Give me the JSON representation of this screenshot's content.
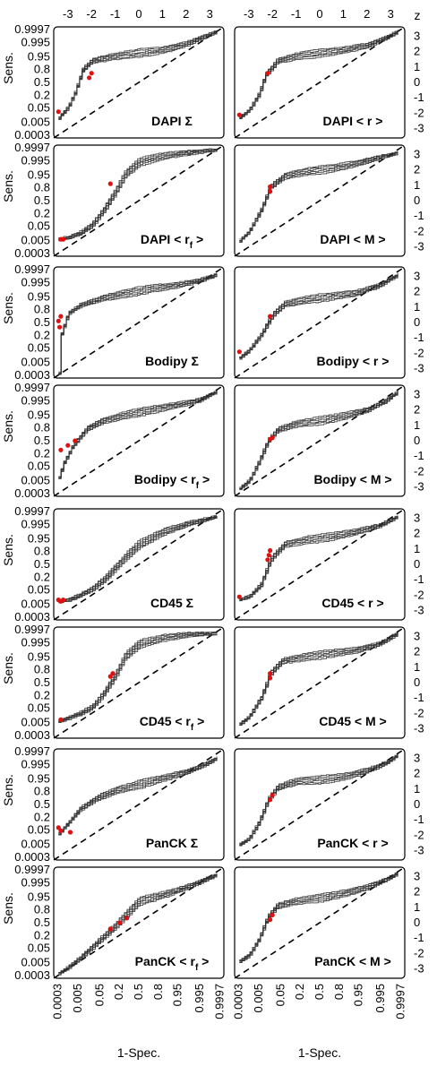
{
  "chart_data": {
    "type": "line",
    "axes": {
      "y_left": {
        "label": "Sens.",
        "ticks": [
          0.9997,
          0.995,
          0.95,
          0.8,
          0.5,
          0.2,
          0.05,
          0.005,
          0.0003
        ],
        "tick_labels": [
          "0.9997",
          "0.995",
          "0.95",
          "0.8",
          "0.5",
          "0.2",
          "0.05",
          "0.005",
          "0.0003"
        ],
        "scale": "probit"
      },
      "x_bottom": {
        "label": "1-Spec.",
        "ticks": [
          0.0003,
          0.005,
          0.05,
          0.2,
          0.5,
          0.8,
          0.95,
          0.995,
          0.9997
        ],
        "tick_labels": [
          "0.0003",
          "0.005",
          "0.05",
          "0.2",
          "0.5",
          "0.8",
          "0.95",
          "0.995",
          "0.9997"
        ],
        "scale": "probit"
      },
      "x_top": {
        "label": "z",
        "ticks": [
          -3,
          -2,
          -1,
          0,
          1,
          2,
          3
        ],
        "tick_labels": [
          "-3",
          "-2",
          "-1",
          "0",
          "1",
          "2",
          "3"
        ]
      },
      "y_right": {
        "label": "",
        "ticks": [
          3,
          2,
          1,
          0,
          -1,
          -2,
          -3
        ],
        "tick_labels": [
          "3",
          "2",
          "1",
          "0",
          "-1",
          "-2",
          "-3"
        ]
      },
      "z_range": [
        -3.6,
        3.6
      ]
    },
    "grid": false,
    "chance_line": "dashed diagonal",
    "panels": [
      {
        "title": "DAPI Σ",
        "sub": "",
        "end": "",
        "row": 0,
        "col": 0,
        "curve": [
          [
            -3.4,
            -2.3
          ],
          [
            -3.0,
            -1.6
          ],
          [
            -2.7,
            -0.6
          ],
          [
            -2.4,
            0.8
          ],
          [
            -2.0,
            1.4
          ],
          [
            -1.0,
            1.7
          ],
          [
            0.0,
            1.9
          ],
          [
            1.0,
            2.1
          ],
          [
            2.0,
            2.5
          ],
          [
            2.8,
            3.0
          ],
          [
            3.3,
            3.3
          ]
        ],
        "markers": [
          [
            -3.4,
            -1.9
          ],
          [
            -2.1,
            0.3
          ],
          [
            -2.0,
            0.6
          ]
        ]
      },
      {
        "title": "DAPI < r >",
        "sub": "",
        "end": "",
        "row": 0,
        "col": 1,
        "curve": [
          [
            -3.4,
            -2.3
          ],
          [
            -3.0,
            -1.8
          ],
          [
            -2.6,
            -0.8
          ],
          [
            -2.3,
            0.5
          ],
          [
            -1.8,
            1.4
          ],
          [
            -1.0,
            1.7
          ],
          [
            0.0,
            1.9
          ],
          [
            1.0,
            2.1
          ],
          [
            2.0,
            2.4
          ],
          [
            2.8,
            2.9
          ],
          [
            3.3,
            3.3
          ]
        ],
        "markers": [
          [
            -3.4,
            -2.1
          ],
          [
            -2.2,
            0.6
          ]
        ]
      },
      {
        "title": "DAPI < r",
        "sub": "f",
        "end": " >",
        "row": 1,
        "col": 0,
        "curve": [
          [
            -3.4,
            -2.5
          ],
          [
            -3.0,
            -2.4
          ],
          [
            -2.5,
            -2.1
          ],
          [
            -2.0,
            -1.6
          ],
          [
            -1.5,
            -0.6
          ],
          [
            -1.0,
            0.6
          ],
          [
            -0.6,
            1.7
          ],
          [
            0.0,
            2.5
          ],
          [
            1.0,
            2.9
          ],
          [
            2.0,
            3.1
          ],
          [
            3.3,
            3.3
          ]
        ],
        "markers": [
          [
            -3.3,
            -2.5
          ],
          [
            -3.2,
            -2.5
          ],
          [
            -1.2,
            1.1
          ]
        ]
      },
      {
        "title": "DAPI < M >",
        "sub": "",
        "end": "",
        "row": 1,
        "col": 1,
        "curve": [
          [
            -3.4,
            -2.6
          ],
          [
            -3.0,
            -2.0
          ],
          [
            -2.5,
            -0.6
          ],
          [
            -2.1,
            0.9
          ],
          [
            -1.5,
            1.6
          ],
          [
            -0.5,
            1.9
          ],
          [
            0.5,
            2.1
          ],
          [
            1.5,
            2.4
          ],
          [
            2.5,
            2.8
          ],
          [
            3.3,
            3.1
          ]
        ],
        "markers": [
          [
            -2.1,
            0.6
          ],
          [
            -2.1,
            0.9
          ]
        ]
      },
      {
        "title": "Bodipy Σ",
        "sub": "",
        "end": "",
        "row": 2,
        "col": 0,
        "curve": [
          [
            -3.4,
            -3.3
          ],
          [
            -3.3,
            -0.8
          ],
          [
            -3.0,
            0.6
          ],
          [
            -2.5,
            1.1
          ],
          [
            -1.5,
            1.6
          ],
          [
            -0.5,
            1.9
          ],
          [
            0.5,
            2.2
          ],
          [
            1.5,
            2.4
          ],
          [
            2.5,
            2.7
          ],
          [
            3.3,
            3.1
          ]
        ],
        "markers": [
          [
            -3.4,
            0.1
          ],
          [
            -3.35,
            -0.3
          ],
          [
            -3.3,
            0.4
          ]
        ]
      },
      {
        "title": "Bodipy < r >",
        "sub": "",
        "end": "",
        "row": 2,
        "col": 1,
        "curve": [
          [
            -3.4,
            -2.3
          ],
          [
            -3.0,
            -1.8
          ],
          [
            -2.5,
            -0.8
          ],
          [
            -2.0,
            0.5
          ],
          [
            -1.5,
            1.2
          ],
          [
            -0.5,
            1.5
          ],
          [
            0.5,
            1.7
          ],
          [
            1.5,
            1.9
          ],
          [
            2.5,
            2.4
          ],
          [
            3.3,
            3.1
          ]
        ],
        "markers": [
          [
            -3.4,
            -1.9
          ],
          [
            -2.1,
            0.4
          ]
        ]
      },
      {
        "title": "Bodipy < r",
        "sub": "f",
        "end": " >",
        "row": 3,
        "col": 0,
        "curve": [
          [
            -3.4,
            -2.4
          ],
          [
            -3.2,
            -1.5
          ],
          [
            -2.8,
            -0.3
          ],
          [
            -2.2,
            0.8
          ],
          [
            -1.5,
            1.3
          ],
          [
            -0.5,
            1.7
          ],
          [
            0.5,
            2.0
          ],
          [
            1.5,
            2.3
          ],
          [
            2.5,
            2.6
          ],
          [
            3.3,
            3.2
          ]
        ],
        "markers": [
          [
            -3.3,
            -0.6
          ],
          [
            -3.0,
            -0.3
          ],
          [
            -2.7,
            0.0
          ]
        ]
      },
      {
        "title": "Bodipy < M >",
        "sub": "",
        "end": "",
        "row": 3,
        "col": 1,
        "curve": [
          [
            -3.4,
            -3.1
          ],
          [
            -3.0,
            -2.6
          ],
          [
            -2.6,
            -1.4
          ],
          [
            -2.2,
            0.0
          ],
          [
            -1.8,
            0.7
          ],
          [
            -1.0,
            1.1
          ],
          [
            0.0,
            1.3
          ],
          [
            1.0,
            1.6
          ],
          [
            2.0,
            2.0
          ],
          [
            2.8,
            2.6
          ],
          [
            3.3,
            3.2
          ]
        ],
        "markers": [
          [
            -2.1,
            0.1
          ],
          [
            -2.0,
            0.2
          ]
        ]
      },
      {
        "title": "CD45 Σ",
        "sub": "",
        "end": "",
        "row": 4,
        "col": 0,
        "curve": [
          [
            -3.4,
            -2.4
          ],
          [
            -3.0,
            -2.3
          ],
          [
            -2.5,
            -2.0
          ],
          [
            -2.0,
            -1.6
          ],
          [
            -1.5,
            -1.0
          ],
          [
            -1.0,
            -0.2
          ],
          [
            -0.5,
            0.6
          ],
          [
            0.0,
            1.3
          ],
          [
            1.0,
            2.1
          ],
          [
            2.0,
            2.6
          ],
          [
            3.3,
            3.1
          ]
        ],
        "markers": [
          [
            -3.4,
            -2.3
          ],
          [
            -3.3,
            -2.4
          ],
          [
            -3.2,
            -2.3
          ]
        ]
      },
      {
        "title": "CD45 < r >",
        "sub": "",
        "end": "",
        "row": 4,
        "col": 1,
        "curve": [
          [
            -3.4,
            -2.3
          ],
          [
            -3.0,
            -2.1
          ],
          [
            -2.5,
            -1.3
          ],
          [
            -2.1,
            0.3
          ],
          [
            -1.5,
            1.3
          ],
          [
            -0.5,
            1.6
          ],
          [
            0.5,
            1.8
          ],
          [
            1.5,
            2.1
          ],
          [
            2.5,
            2.5
          ],
          [
            3.3,
            3.1
          ]
        ],
        "markers": [
          [
            -3.4,
            -2.1
          ],
          [
            -2.2,
            0.3
          ],
          [
            -2.15,
            0.6
          ],
          [
            -2.1,
            0.9
          ]
        ]
      },
      {
        "title": "CD45 < r",
        "sub": "f",
        "end": " >",
        "row": 5,
        "col": 0,
        "curve": [
          [
            -3.4,
            -2.5
          ],
          [
            -3.0,
            -2.3
          ],
          [
            -2.5,
            -2.0
          ],
          [
            -2.0,
            -1.6
          ],
          [
            -1.5,
            -0.7
          ],
          [
            -1.0,
            0.5
          ],
          [
            -0.6,
            1.7
          ],
          [
            0.0,
            2.5
          ],
          [
            1.0,
            2.9
          ],
          [
            2.0,
            3.1
          ],
          [
            3.3,
            3.2
          ]
        ],
        "markers": [
          [
            -3.3,
            -2.4
          ],
          [
            -1.2,
            0.4
          ],
          [
            -1.1,
            0.6
          ]
        ]
      },
      {
        "title": "CD45 < M >",
        "sub": "",
        "end": "",
        "row": 5,
        "col": 1,
        "curve": [
          [
            -3.4,
            -2.7
          ],
          [
            -3.0,
            -2.2
          ],
          [
            -2.5,
            -1.0
          ],
          [
            -2.1,
            0.6
          ],
          [
            -1.6,
            1.4
          ],
          [
            -0.5,
            1.7
          ],
          [
            0.5,
            1.9
          ],
          [
            1.5,
            2.1
          ],
          [
            2.5,
            2.5
          ],
          [
            3.3,
            3.2
          ]
        ],
        "markers": [
          [
            -2.1,
            0.3
          ],
          [
            -2.1,
            0.6
          ]
        ]
      },
      {
        "title": "PanCK Σ",
        "sub": "",
        "end": "",
        "row": 6,
        "col": 0,
        "curve": [
          [
            -3.4,
            -1.9
          ],
          [
            -3.0,
            -1.2
          ],
          [
            -2.5,
            -0.3
          ],
          [
            -1.8,
            0.4
          ],
          [
            -1.0,
            0.9
          ],
          [
            0.0,
            1.3
          ],
          [
            1.0,
            1.7
          ],
          [
            2.0,
            2.1
          ],
          [
            2.8,
            2.6
          ],
          [
            3.3,
            3.0
          ]
        ],
        "markers": [
          [
            -3.4,
            -1.5
          ],
          [
            -3.3,
            -1.7
          ],
          [
            -2.9,
            -1.8
          ]
        ]
      },
      {
        "title": "PanCK < r >",
        "sub": "",
        "end": "",
        "row": 6,
        "col": 1,
        "curve": [
          [
            -3.4,
            -2.6
          ],
          [
            -3.0,
            -2.2
          ],
          [
            -2.6,
            -1.2
          ],
          [
            -2.2,
            0.3
          ],
          [
            -1.8,
            1.1
          ],
          [
            -1.0,
            1.5
          ],
          [
            0.0,
            1.6
          ],
          [
            1.0,
            1.8
          ],
          [
            2.0,
            2.2
          ],
          [
            2.8,
            2.7
          ],
          [
            3.3,
            3.2
          ]
        ],
        "markers": [
          [
            -2.1,
            0.3
          ],
          [
            -2.0,
            0.6
          ]
        ]
      },
      {
        "title": "PanCK < r",
        "sub": "f",
        "end": " >",
        "row": 7,
        "col": 0,
        "curve": [
          [
            -3.4,
            -3.3
          ],
          [
            -3.0,
            -2.9
          ],
          [
            -2.5,
            -2.3
          ],
          [
            -2.0,
            -1.6
          ],
          [
            -1.5,
            -0.9
          ],
          [
            -1.0,
            -0.2
          ],
          [
            -0.5,
            0.6
          ],
          [
            0.0,
            1.4
          ],
          [
            1.0,
            1.8
          ],
          [
            2.0,
            2.3
          ],
          [
            3.3,
            3.1
          ]
        ],
        "markers": [
          [
            -1.2,
            -0.4
          ],
          [
            -0.8,
            0.0
          ],
          [
            -0.5,
            0.3
          ]
        ]
      },
      {
        "title": "PanCK < M >",
        "sub": "",
        "end": "",
        "row": 7,
        "col": 1,
        "curve": [
          [
            -3.4,
            -2.5
          ],
          [
            -3.0,
            -2.1
          ],
          [
            -2.6,
            -1.1
          ],
          [
            -2.2,
            0.4
          ],
          [
            -1.8,
            1.1
          ],
          [
            -1.0,
            1.4
          ],
          [
            0.0,
            1.6
          ],
          [
            1.0,
            1.9
          ],
          [
            2.0,
            2.3
          ],
          [
            2.8,
            2.8
          ],
          [
            3.3,
            3.2
          ]
        ],
        "markers": [
          [
            -2.1,
            0.2
          ],
          [
            -2.0,
            0.5
          ]
        ]
      }
    ]
  }
}
